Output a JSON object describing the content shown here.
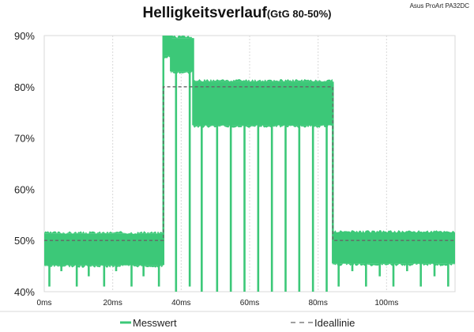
{
  "chart_data": {
    "type": "line",
    "title": "Helligkeitsverlauf",
    "subtitle": "(GtG 80-50%)",
    "device": "Asus ProArt PA32DC",
    "xlabel": "",
    "ylabel": "",
    "xlim": [
      0,
      120
    ],
    "ylim": [
      40,
      90
    ],
    "x_ticks": [
      {
        "value": 0,
        "label": "0ms"
      },
      {
        "value": 20,
        "label": "20ms"
      },
      {
        "value": 40,
        "label": "40ms"
      },
      {
        "value": 60,
        "label": "60ms"
      },
      {
        "value": 80,
        "label": "80ms"
      },
      {
        "value": 100,
        "label": "100ms"
      }
    ],
    "y_ticks": [
      {
        "value": 40,
        "label": "40%"
      },
      {
        "value": 50,
        "label": "50%"
      },
      {
        "value": 60,
        "label": "60%"
      },
      {
        "value": 70,
        "label": "70%"
      },
      {
        "value": 80,
        "label": "80%"
      },
      {
        "value": 90,
        "label": "90%"
      }
    ],
    "grid": "vertical-major",
    "legend_position": "bottom",
    "series": [
      {
        "name": "Messwert",
        "style": "solid",
        "color": "#3cc878",
        "bands": [
          {
            "x": [
              0,
              34.8
            ],
            "low": 45.2,
            "high": 51.3
          },
          {
            "x": [
              34.8,
              37
            ],
            "low": 86,
            "high": 90
          },
          {
            "x": [
              37,
              43.5
            ],
            "low": 83,
            "high": 89.5
          },
          {
            "x": [
              43.5,
              84.3
            ],
            "low": 72.5,
            "high": 81
          },
          {
            "x": [
              84.3,
              120
            ],
            "low": 45.5,
            "high": 51.5
          }
        ],
        "dropouts": [
          {
            "x": 1.5,
            "low": 41
          },
          {
            "x": 5,
            "low": 44
          },
          {
            "x": 9.5,
            "low": 41
          },
          {
            "x": 13,
            "low": 43
          },
          {
            "x": 17.5,
            "low": 41
          },
          {
            "x": 21,
            "low": 44
          },
          {
            "x": 25.5,
            "low": 41
          },
          {
            "x": 29,
            "low": 43
          },
          {
            "x": 33.5,
            "low": 41
          },
          {
            "x": 38.5,
            "low": 40
          },
          {
            "x": 42.5,
            "low": 41
          },
          {
            "x": 46,
            "low": 40
          },
          {
            "x": 50.5,
            "low": 40
          },
          {
            "x": 54.5,
            "low": 40
          },
          {
            "x": 58.5,
            "low": 40
          },
          {
            "x": 62.5,
            "low": 40
          },
          {
            "x": 66.5,
            "low": 40
          },
          {
            "x": 70.5,
            "low": 40
          },
          {
            "x": 74.5,
            "low": 40
          },
          {
            "x": 78.5,
            "low": 40
          },
          {
            "x": 82.5,
            "low": 40
          },
          {
            "x": 86,
            "low": 41
          },
          {
            "x": 90,
            "low": 44
          },
          {
            "x": 94,
            "low": 41
          },
          {
            "x": 98,
            "low": 43
          },
          {
            "x": 102,
            "low": 41
          },
          {
            "x": 106,
            "low": 44
          },
          {
            "x": 110,
            "low": 41
          },
          {
            "x": 114,
            "low": 43
          },
          {
            "x": 118,
            "low": 41
          }
        ]
      },
      {
        "name": "Ideallinie",
        "style": "dashed",
        "color": "#666666",
        "points": [
          [
            0,
            50
          ],
          [
            34.8,
            50
          ],
          [
            34.8,
            80
          ],
          [
            84.3,
            80
          ],
          [
            84.3,
            50
          ],
          [
            120,
            50
          ]
        ]
      }
    ]
  }
}
